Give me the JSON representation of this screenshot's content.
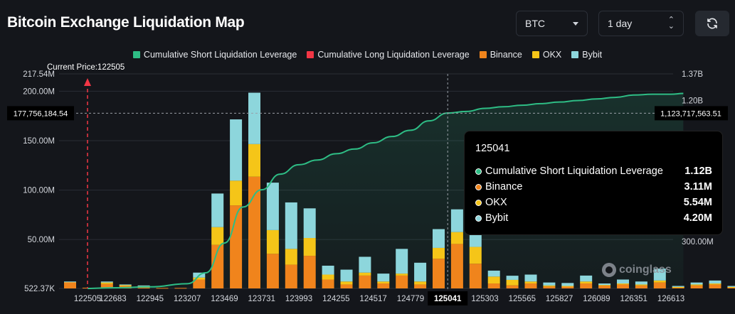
{
  "header": {
    "title": "Bitcoin Exchange Liquidation Map",
    "symbol_select": "BTC",
    "range_select": "1 day",
    "refresh_icon": "refresh-icon"
  },
  "legend": [
    {
      "label": "Cumulative Short Liquidation Leverage",
      "color": "#2ebd85"
    },
    {
      "label": "Cumulative Long Liquidation Leverage",
      "color": "#f23645"
    },
    {
      "label": "Binance",
      "color": "#f0841c"
    },
    {
      "label": "OKX",
      "color": "#f5c518"
    },
    {
      "label": "Bybit",
      "color": "#8dd6dc"
    }
  ],
  "tooltip": {
    "title": "125041",
    "rows": [
      {
        "name": "Cumulative Short Liquidation Leverage",
        "value": "1.12B",
        "color": "#2ebd85"
      },
      {
        "name": "Binance",
        "value": "3.11M",
        "color": "#f0841c"
      },
      {
        "name": "OKX",
        "value": "5.54M",
        "color": "#f5c518"
      },
      {
        "name": "Bybit",
        "value": "4.20M",
        "color": "#8dd6dc"
      }
    ]
  },
  "watermark": "coinglass",
  "chart_data": {
    "type": "bar",
    "title": "Bitcoin Exchange Liquidation Map",
    "current_price_label": "Current Price:122505",
    "current_price": 122505,
    "crosshair": {
      "x": 125041,
      "left_value": "177,756,184.54",
      "right_value": "1,123,717,563.51",
      "left_num": 177756184.54,
      "right_num": 1123717563.51
    },
    "x_ticks": [
      "122505",
      "122683",
      "122945",
      "123207",
      "123469",
      "123731",
      "123993",
      "124255",
      "124517",
      "124779",
      "125041",
      "125303",
      "125565",
      "125827",
      "126089",
      "126351",
      "126613"
    ],
    "left_ticks": [
      "217.54M",
      "200.00M",
      "150.00M",
      "100.00M",
      "50.00M",
      "522.37K"
    ],
    "left_tick_values": [
      217.54,
      200,
      150,
      100,
      50,
      0.52237
    ],
    "right_ticks": [
      "1.37B",
      "1.20B",
      "300.00M"
    ],
    "right_tick_values": [
      1.37,
      1.2,
      0.3
    ],
    "ylim_left_millions": [
      0.52237,
      217.54
    ],
    "ylim_right_billions": [
      0,
      1.37
    ],
    "bar_series": [
      {
        "name": "Binance",
        "color": "#f0841c",
        "values": [
          6.5,
          0.7,
          4.5,
          2.5,
          1.5,
          0.5,
          0.5,
          9,
          44,
          84,
          113,
          35,
          24,
          33,
          9,
          4,
          13,
          5,
          13,
          4,
          30,
          45,
          25,
          5,
          3.11,
          5,
          2,
          2,
          5,
          3,
          4,
          3,
          6,
          1,
          3,
          4,
          1,
          1,
          4
        ]
      },
      {
        "name": "OKX",
        "color": "#f5c518",
        "values": [
          0.3,
          0,
          1.5,
          1,
          1,
          0,
          0,
          2,
          18,
          25,
          33,
          24,
          16,
          18,
          5,
          3,
          3,
          2,
          2,
          3,
          11,
          12,
          17,
          7,
          5.54,
          2,
          1,
          0.5,
          2,
          0.5,
          1,
          1,
          2,
          0.5,
          1,
          1,
          0.5,
          0.5,
          0.5
        ]
      },
      {
        "name": "Bybit",
        "color": "#8dd6dc",
        "values": [
          0.2,
          0,
          1,
          0.5,
          0.5,
          0,
          0,
          5,
          34,
          62,
          52,
          48,
          47,
          30,
          9,
          12,
          16,
          8,
          25,
          19,
          19,
          23,
          23,
          6,
          4.2,
          7,
          3,
          3,
          6,
          1.5,
          4,
          3,
          12,
          1,
          2,
          3,
          1,
          1,
          0.5
        ]
      }
    ],
    "cumulative_short_series": {
      "name": "Cumulative Short Liquidation Leverage",
      "color": "#2ebd85",
      "points_x": [
        122505,
        122683,
        122945,
        123207,
        123338,
        123469,
        123600,
        123731,
        123862,
        123993,
        124124,
        124255,
        124386,
        124517,
        124648,
        124779,
        124910,
        125041,
        125172,
        125303,
        125434,
        125565,
        125696,
        125827,
        125958,
        126089,
        126220,
        126351,
        126482,
        126613,
        126700
      ],
      "points_y_billions": [
        0.0,
        0.004,
        0.01,
        0.03,
        0.1,
        0.29,
        0.52,
        0.63,
        0.73,
        0.79,
        0.82,
        0.86,
        0.89,
        0.93,
        0.97,
        1.01,
        1.07,
        1.12,
        1.13,
        1.15,
        1.16,
        1.17,
        1.18,
        1.19,
        1.2,
        1.21,
        1.22,
        1.235,
        1.24,
        1.24,
        1.245
      ]
    }
  }
}
